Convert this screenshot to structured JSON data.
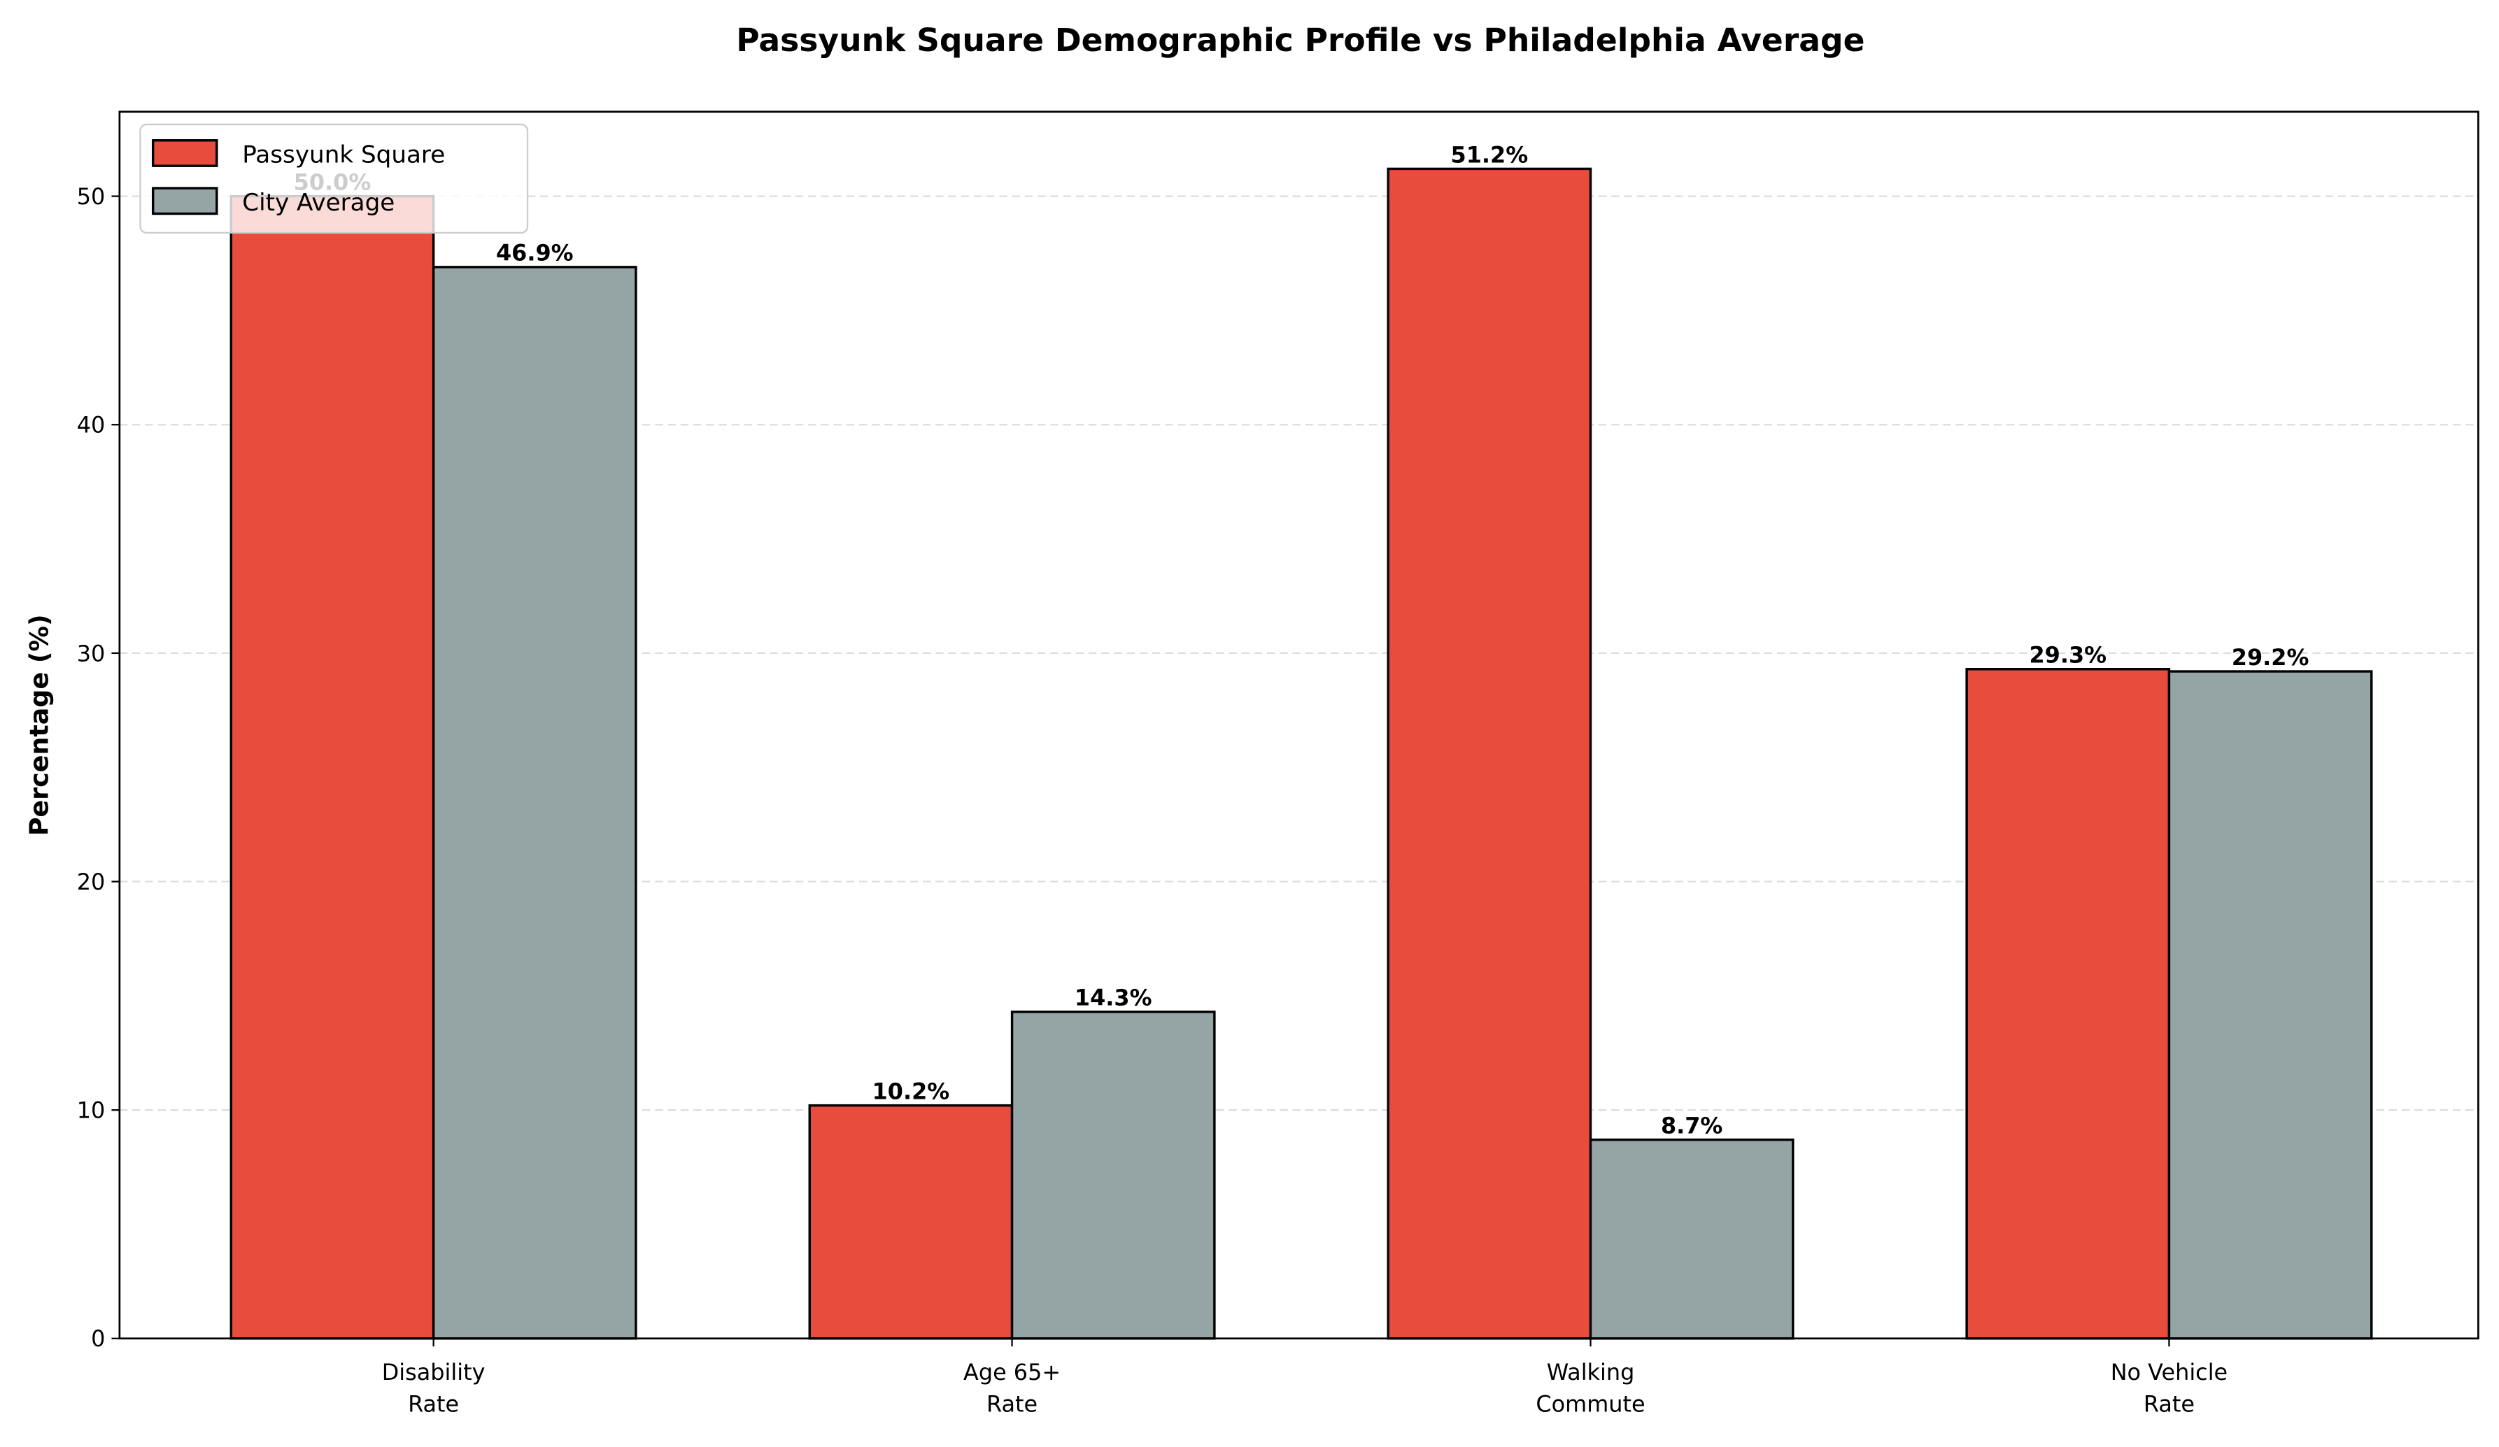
{
  "chart_data": {
    "type": "bar",
    "title": "Passyunk Square Demographic Profile vs Philadelphia Average",
    "xlabel": "",
    "ylabel": "Percentage (%)",
    "ylim": [
      0,
      53.7
    ],
    "yticks": [
      0,
      10,
      20,
      30,
      40,
      50
    ],
    "grid": true,
    "legend_placement": "top-left",
    "categories": [
      [
        "Disability",
        "Rate"
      ],
      [
        "Age 65+",
        "Rate"
      ],
      [
        "Walking",
        "Commute"
      ],
      [
        "No Vehicle",
        "Rate"
      ]
    ],
    "series": [
      {
        "name": "Passyunk Square",
        "color": "#e74c3c",
        "values": [
          50.0,
          10.2,
          51.2,
          29.3
        ],
        "labels": [
          "50.0%",
          "10.2%",
          "51.2%",
          "29.3%"
        ]
      },
      {
        "name": "City Average",
        "color": "#95a5a6",
        "values": [
          46.9,
          14.3,
          8.7,
          29.2
        ],
        "labels": [
          "46.9%",
          "14.3%",
          "8.7%",
          "29.2%"
        ]
      }
    ]
  }
}
